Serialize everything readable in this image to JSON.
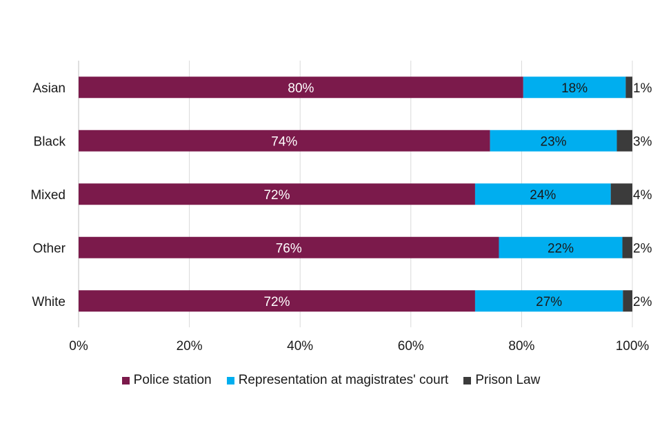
{
  "chart_data": {
    "type": "bar",
    "orientation": "horizontal",
    "stacked": true,
    "categories": [
      "Asian",
      "Black",
      "Mixed",
      "Other",
      "White"
    ],
    "series": [
      {
        "name": "Police station",
        "color": "#7b1a4b",
        "values": [
          80.3,
          74.3,
          71.6,
          75.9,
          71.6
        ],
        "labels": [
          "80%",
          "74%",
          "72%",
          "76%",
          "72%"
        ]
      },
      {
        "name": "Representation at magistrates' court",
        "color": "#00aeef",
        "values": [
          18.5,
          22.9,
          24.5,
          22.3,
          26.7
        ],
        "labels": [
          "18%",
          "23%",
          "24%",
          "22%",
          "27%"
        ]
      },
      {
        "name": "Prison Law",
        "color": "#3b3b3b",
        "values": [
          1.2,
          2.8,
          3.9,
          1.8,
          1.7
        ],
        "labels": [
          "1%",
          "3%",
          "4%",
          "2%",
          "2%"
        ]
      }
    ],
    "xlim": [
      0,
      100
    ],
    "xticks": [
      "0%",
      "20%",
      "40%",
      "60%",
      "80%",
      "100%"
    ],
    "grid": true,
    "legend_position": "bottom"
  }
}
